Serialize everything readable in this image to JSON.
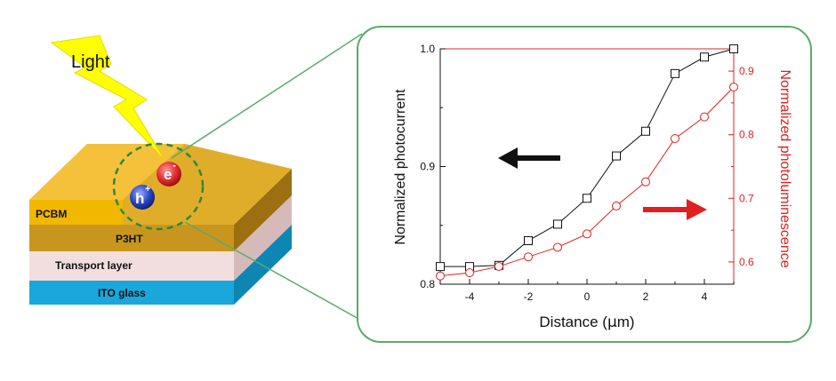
{
  "device": {
    "light_label": "Light",
    "electron_symbol": "e",
    "electron_sup": "-",
    "hole_symbol": "h",
    "hole_sup": "+",
    "layers": [
      "PCBM",
      "P3HT",
      "Transport layer",
      "ITO glass"
    ]
  },
  "colors": {
    "photocurrent": "#111111",
    "photoluminescence": "#e02020",
    "frame": "#5aaa6a",
    "bolt": "#ffff00",
    "pcbm": "#f0b400",
    "p3ht": "#c8961e",
    "transport": "#f2dede",
    "ito": "#1aa7dc"
  },
  "chart_data": {
    "type": "line",
    "xlabel_pre": "Distance (",
    "xlabel_mu": "μ",
    "xlabel_post": "m)",
    "ylabel_left": "Normalized photocurrent",
    "ylabel_right": "Normalized photoluminescence",
    "xlim": [
      -5,
      5
    ],
    "ylim_left": [
      0.8,
      1.0
    ],
    "ylim_right": [
      0.565,
      0.935
    ],
    "x_ticks": [
      -4,
      -2,
      0,
      2,
      4
    ],
    "x_tick_labels": [
      "-4",
      "-2",
      "0",
      "2",
      "4"
    ],
    "y_left_ticks": [
      0.8,
      0.9,
      1.0
    ],
    "y_left_tick_labels": [
      "0.8",
      "0.9",
      "1.0"
    ],
    "y_right_ticks": [
      0.6,
      0.7,
      0.8,
      0.9
    ],
    "y_right_tick_labels": [
      "0.6",
      "0.7",
      "0.8",
      "0.9"
    ],
    "series": [
      {
        "axis": "left",
        "marker": "square",
        "x": [
          -5,
          -4,
          -3,
          -2,
          -1,
          0,
          1,
          2,
          3,
          4,
          5
        ],
        "y": [
          0.815,
          0.815,
          0.816,
          0.837,
          0.851,
          0.873,
          0.909,
          0.93,
          0.979,
          0.993,
          1.0
        ]
      },
      {
        "axis": "right",
        "marker": "circle",
        "x": [
          -5,
          -4,
          -3,
          -2,
          -1,
          0,
          1,
          2,
          3,
          4,
          5
        ],
        "y": [
          0.578,
          0.583,
          0.593,
          0.608,
          0.623,
          0.644,
          0.688,
          0.726,
          0.794,
          0.828,
          0.875
        ]
      }
    ]
  }
}
